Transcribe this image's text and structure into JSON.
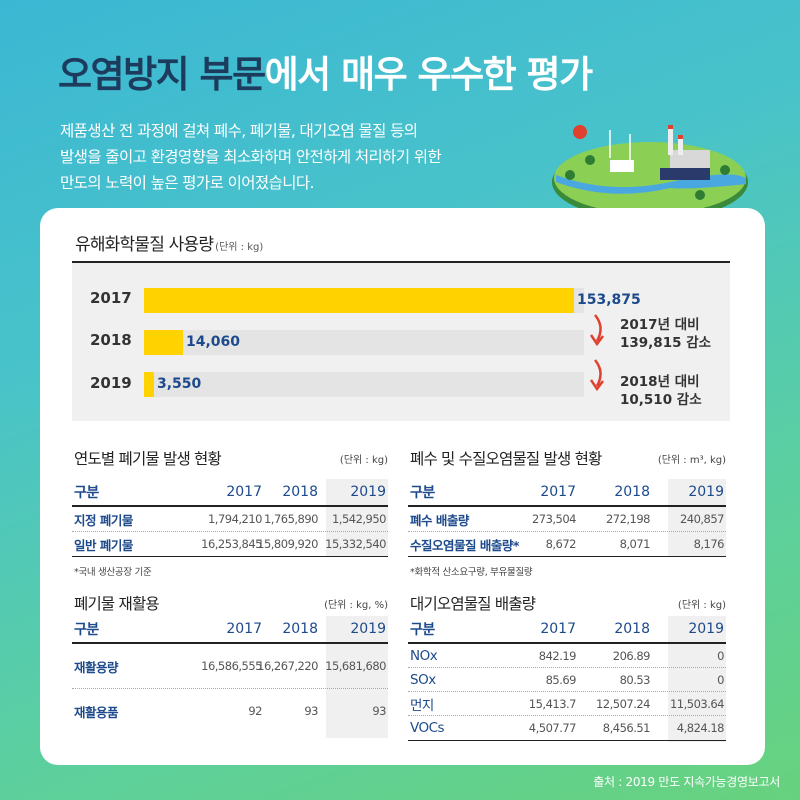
{
  "header": {
    "title_dark": "오염방지 부문",
    "title_white": "에서 매우 우수한 평가",
    "desc_lines": [
      "제품생산 전 과정에 걸쳐 폐수, 폐기물, 대기오염 물질 등의",
      "발생을 줄이고 환경영향을 최소화하며 안전하게 처리하기 위한",
      "만도의 노력이 높은 평가로 이어졌습니다."
    ]
  },
  "chemicals": {
    "title": "유해화학물질 사용량",
    "unit": "(단위 : kg)",
    "notes": [
      {
        "line1": "2017년 대비",
        "line2": "139,815 감소"
      },
      {
        "line1": "2018년 대비",
        "line2": "10,510 감소"
      }
    ]
  },
  "chart_data": {
    "type": "bar",
    "orientation": "horizontal",
    "title": "유해화학물질 사용량",
    "unit": "kg",
    "categories": [
      "2017",
      "2018",
      "2019"
    ],
    "values": [
      153875,
      14060,
      3550
    ],
    "value_labels": [
      "153,875",
      "14,060",
      "3,550"
    ],
    "xlim": [
      0,
      153875
    ]
  },
  "waste": {
    "title": "연도별 폐기물 발생 현황",
    "unit": "(단위 : kg)",
    "headers": [
      "구분",
      "2017",
      "2018",
      "2019"
    ],
    "rows": [
      [
        "지정 폐기물",
        "1,794,210",
        "1,765,890",
        "1,542,950"
      ],
      [
        "일반 폐기물",
        "16,253,845",
        "15,809,920",
        "15,332,540"
      ]
    ],
    "footnote": "*국내 생산공장 기준"
  },
  "water": {
    "title": "폐수 및 수질오염물질 발생 현황",
    "unit": "(단위 : m³, kg)",
    "headers": [
      "구분",
      "2017",
      "2018",
      "2019"
    ],
    "rows": [
      [
        "폐수 배출량",
        "273,504",
        "272,198",
        "240,857"
      ],
      [
        "수질오염물질 배출량*",
        "8,672",
        "8,071",
        "8,176"
      ]
    ],
    "footnote": "*화학적 산소요구량, 부유물질량"
  },
  "recycle": {
    "title": "폐기물 재활용",
    "unit": "(단위 : kg, %)",
    "headers": [
      "구분",
      "2017",
      "2018",
      "2019"
    ],
    "rows": [
      [
        "재활용량",
        "16,586,555",
        "16,267,220",
        "15,681,680"
      ],
      [
        "재활용품",
        "92",
        "93",
        "93"
      ]
    ]
  },
  "air": {
    "title": "대기오염물질 배출량",
    "unit": "(단위 : kg)",
    "headers": [
      "구분",
      "2017",
      "2018",
      "2019"
    ],
    "rows": [
      [
        "NOx",
        "842.19",
        "206.89",
        "0"
      ],
      [
        "SOx",
        "85.69",
        "80.53",
        "0"
      ],
      [
        "먼지",
        "15,413.7",
        "12,507.24",
        "11,503.64"
      ],
      [
        "VOCs",
        "4,507.77",
        "8,456.51",
        "4,824.18"
      ]
    ]
  },
  "source": "출처 : 2019 만도 지속가능경영보고서",
  "colors": {
    "navy": "#1d3b5c",
    "blue_text": "#1d4a8c",
    "bar_yellow": "#ffd200",
    "arrow_red": "#e0412f"
  }
}
